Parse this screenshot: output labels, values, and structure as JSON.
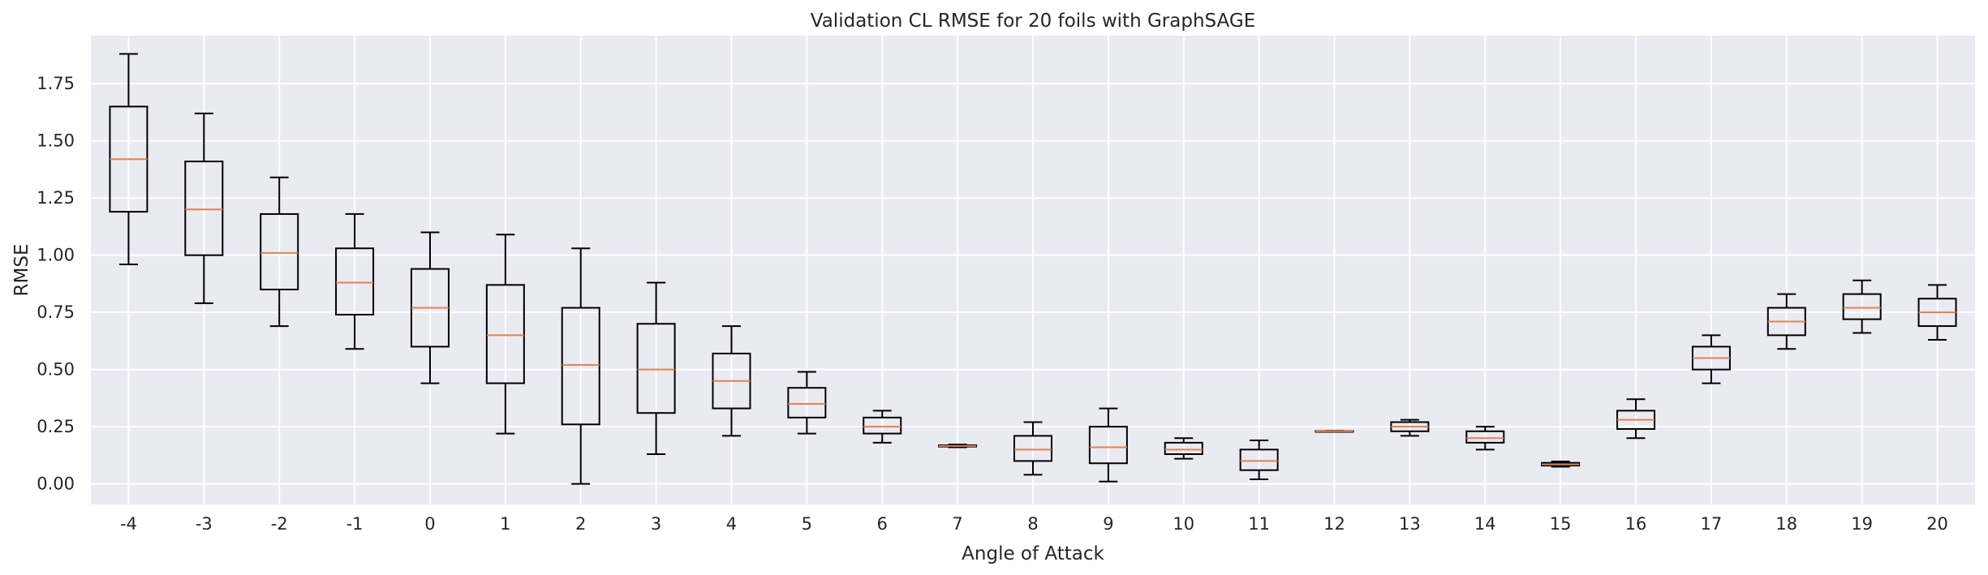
{
  "chart_data": {
    "type": "box",
    "title": "Validation CL RMSE for 20 foils with GraphSAGE",
    "xlabel": "Angle of Attack",
    "ylabel": "RMSE",
    "categories": [
      "-4",
      "-3",
      "-2",
      "-1",
      "0",
      "1",
      "2",
      "3",
      "4",
      "5",
      "6",
      "7",
      "8",
      "9",
      "10",
      "11",
      "12",
      "13",
      "14",
      "15",
      "16",
      "17",
      "18",
      "19",
      "20"
    ],
    "ylim": [
      -0.09,
      1.96
    ],
    "yticks": [
      0.0,
      0.25,
      0.5,
      0.75,
      1.0,
      1.25,
      1.5,
      1.75
    ],
    "ytick_labels": [
      "0.00",
      "0.25",
      "0.50",
      "0.75",
      "1.00",
      "1.25",
      "1.50",
      "1.75"
    ],
    "grid": true,
    "colors": {
      "background": "#eaeaf2",
      "grid": "#ffffff",
      "box": "#000000",
      "median": "#dd8452",
      "text": "#262626"
    },
    "boxes": [
      {
        "min": 0.96,
        "q1": 1.19,
        "median": 1.42,
        "q3": 1.65,
        "max": 1.88
      },
      {
        "min": 0.79,
        "q1": 1.0,
        "median": 1.2,
        "q3": 1.41,
        "max": 1.62
      },
      {
        "min": 0.69,
        "q1": 0.85,
        "median": 1.01,
        "q3": 1.18,
        "max": 1.34
      },
      {
        "min": 0.59,
        "q1": 0.74,
        "median": 0.88,
        "q3": 1.03,
        "max": 1.18
      },
      {
        "min": 0.44,
        "q1": 0.6,
        "median": 0.77,
        "q3": 0.94,
        "max": 1.1
      },
      {
        "min": 0.22,
        "q1": 0.44,
        "median": 0.65,
        "q3": 0.87,
        "max": 1.09
      },
      {
        "min": 0.0,
        "q1": 0.26,
        "median": 0.52,
        "q3": 0.77,
        "max": 1.03
      },
      {
        "min": 0.13,
        "q1": 0.31,
        "median": 0.5,
        "q3": 0.7,
        "max": 0.88
      },
      {
        "min": 0.21,
        "q1": 0.33,
        "median": 0.45,
        "q3": 0.57,
        "max": 0.69
      },
      {
        "min": 0.22,
        "q1": 0.29,
        "median": 0.35,
        "q3": 0.42,
        "max": 0.49
      },
      {
        "min": 0.18,
        "q1": 0.22,
        "median": 0.25,
        "q3": 0.29,
        "max": 0.32
      },
      {
        "min": 0.16,
        "q1": 0.163,
        "median": 0.166,
        "q3": 0.169,
        "max": 0.172
      },
      {
        "min": 0.04,
        "q1": 0.1,
        "median": 0.15,
        "q3": 0.21,
        "max": 0.27
      },
      {
        "min": 0.01,
        "q1": 0.09,
        "median": 0.16,
        "q3": 0.25,
        "max": 0.33
      },
      {
        "min": 0.11,
        "q1": 0.13,
        "median": 0.15,
        "q3": 0.18,
        "max": 0.2
      },
      {
        "min": 0.02,
        "q1": 0.06,
        "median": 0.1,
        "q3": 0.15,
        "max": 0.19
      },
      {
        "min": 0.228,
        "q1": 0.229,
        "median": 0.23,
        "q3": 0.231,
        "max": 0.232
      },
      {
        "min": 0.21,
        "q1": 0.23,
        "median": 0.25,
        "q3": 0.27,
        "max": 0.28
      },
      {
        "min": 0.15,
        "q1": 0.18,
        "median": 0.2,
        "q3": 0.23,
        "max": 0.25
      },
      {
        "min": 0.075,
        "q1": 0.08,
        "median": 0.085,
        "q3": 0.092,
        "max": 0.098
      },
      {
        "min": 0.2,
        "q1": 0.24,
        "median": 0.28,
        "q3": 0.32,
        "max": 0.37
      },
      {
        "min": 0.44,
        "q1": 0.5,
        "median": 0.55,
        "q3": 0.6,
        "max": 0.65
      },
      {
        "min": 0.59,
        "q1": 0.65,
        "median": 0.71,
        "q3": 0.77,
        "max": 0.83
      },
      {
        "min": 0.66,
        "q1": 0.72,
        "median": 0.77,
        "q3": 0.83,
        "max": 0.89
      },
      {
        "min": 0.63,
        "q1": 0.69,
        "median": 0.75,
        "q3": 0.81,
        "max": 0.87
      }
    ]
  }
}
